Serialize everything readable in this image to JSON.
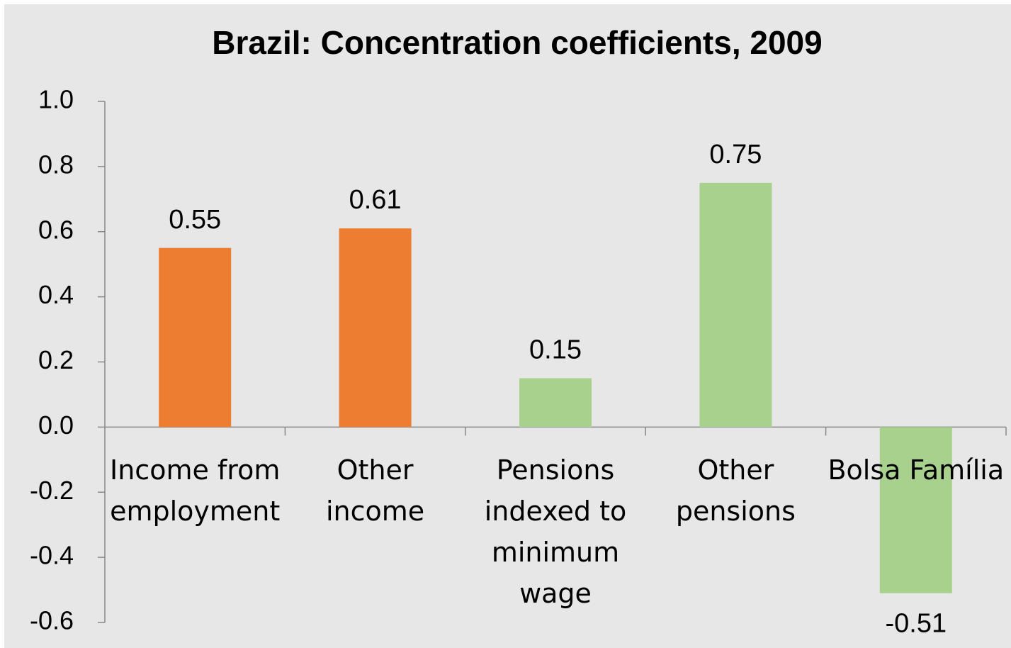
{
  "chart_data": {
    "type": "bar",
    "title": "Brazil: Concentration coefficients, 2009",
    "categories": [
      "Income from employment",
      "Other income",
      "Pensions indexed to minimum wage",
      "Other pensions",
      "Bolsa Família"
    ],
    "values": [
      0.55,
      0.61,
      0.15,
      0.75,
      -0.51
    ],
    "colors": [
      "#ed7d31",
      "#ed7d31",
      "#a9d18e",
      "#a9d18e",
      "#a9d18e"
    ],
    "ylim": [
      -0.6,
      1.0
    ],
    "yticks": [
      {
        "value": 1,
        "label": "1.0"
      },
      0.8,
      0.6,
      0.4,
      0.2,
      {
        "value": 0,
        "label": "0.0"
      },
      -0.2,
      -0.4,
      -0.6
    ],
    "grid": false
  }
}
